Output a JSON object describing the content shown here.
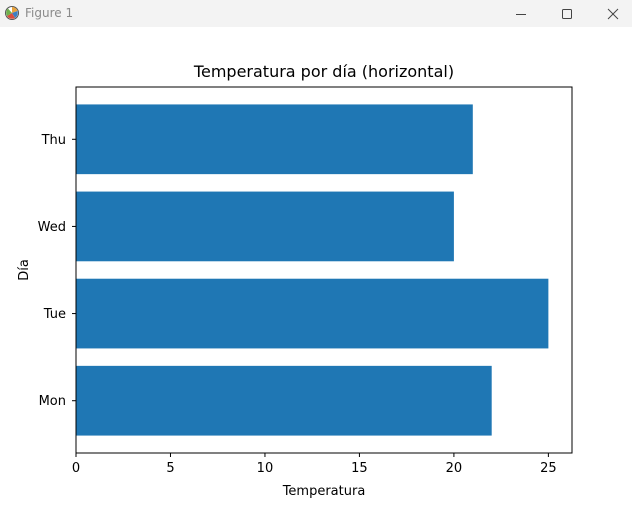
{
  "window": {
    "title": "Figure 1",
    "app_icon": "matplotlib-icon",
    "controls": [
      "minimize-icon",
      "maximize-icon",
      "close-icon"
    ]
  },
  "chart_data": {
    "type": "bar",
    "orientation": "horizontal",
    "title": "Temperatura por día (horizontal)",
    "xlabel": "Temperatura",
    "ylabel": "Día",
    "categories": [
      "Mon",
      "Tue",
      "Wed",
      "Thu"
    ],
    "values": [
      22,
      25,
      20,
      21
    ],
    "xlim": [
      0,
      26.25
    ],
    "xticks": [
      0,
      5,
      10,
      15,
      20,
      25
    ],
    "bar_color": "#1f77b4",
    "grid": false,
    "legend": "none"
  }
}
